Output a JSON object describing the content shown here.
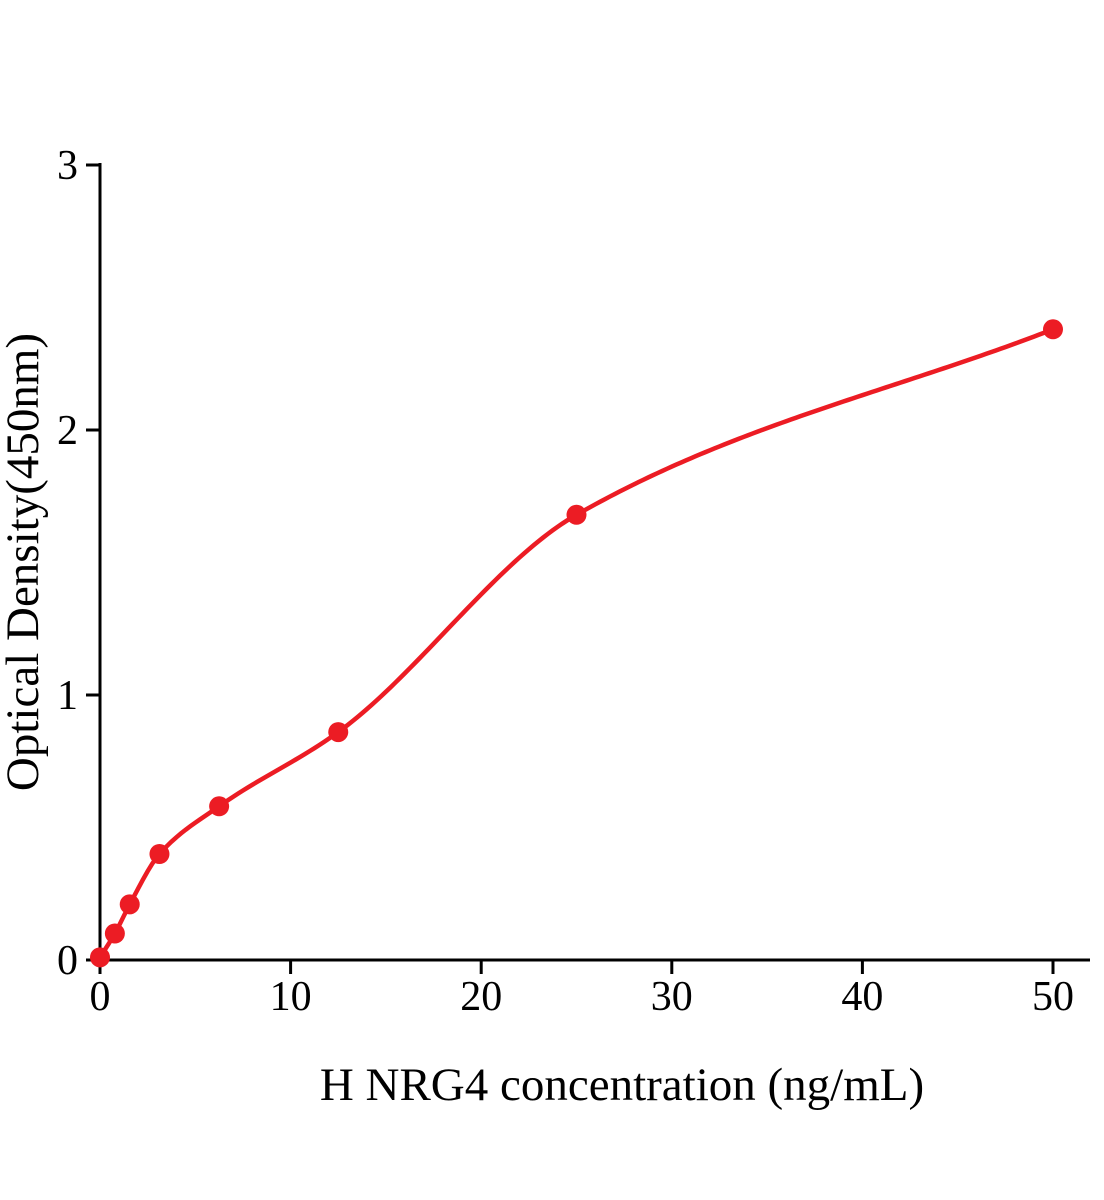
{
  "figure": {
    "background": "#ffffff",
    "description": "ELISA standard curve plot"
  },
  "chart_data": {
    "type": "scatter",
    "title": "",
    "xlabel": "H NRG4 concentration (ng/mL)",
    "ylabel": "Optical Density(450nm)",
    "x": [
      0,
      0.78,
      1.56,
      3.12,
      6.25,
      12.5,
      25,
      50
    ],
    "y": [
      0.01,
      0.1,
      0.21,
      0.4,
      0.58,
      0.86,
      1.68,
      2.38
    ],
    "xlim": [
      0,
      52
    ],
    "ylim": [
      0,
      3
    ],
    "xticks": [
      0,
      10,
      20,
      30,
      40,
      50
    ],
    "yticks": [
      0,
      1,
      2,
      3
    ],
    "grid": false,
    "legend": "none",
    "marker": "circle",
    "fit_line": true,
    "point_color": "#ec1c24",
    "line_color": "#ec1c24",
    "axis_color": "#000000",
    "text_color": "#000000"
  }
}
